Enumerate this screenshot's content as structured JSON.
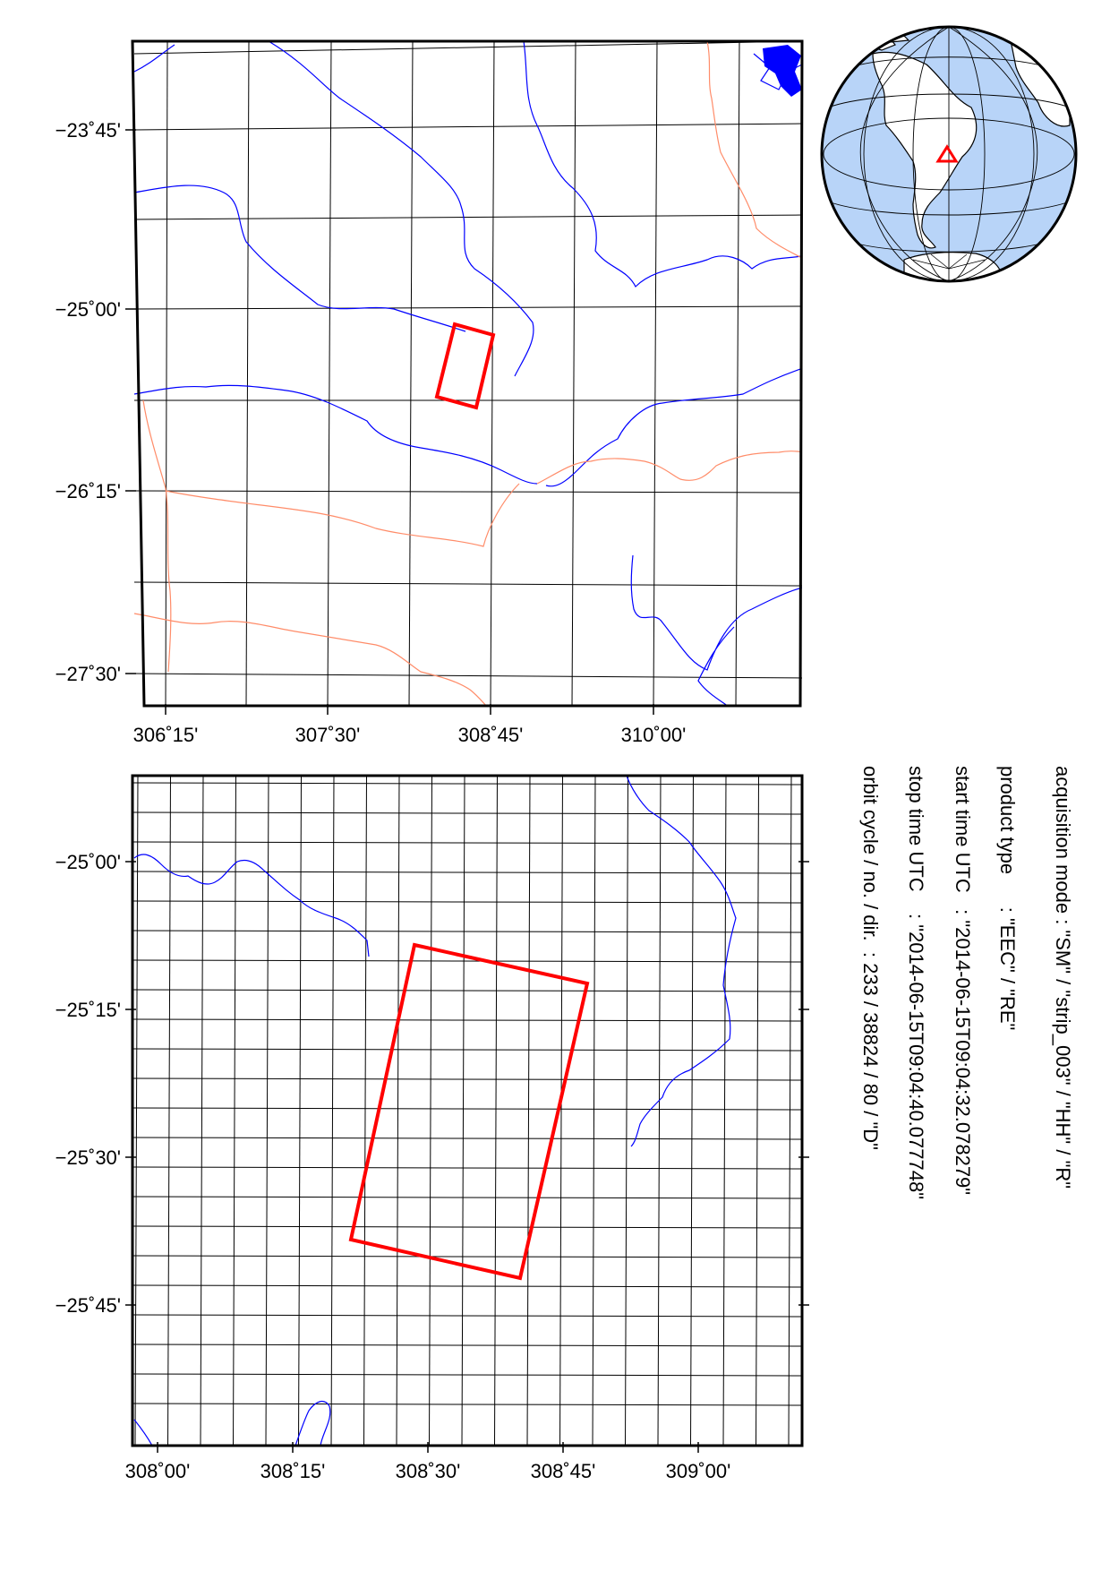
{
  "overview_map": {
    "lat_labels": [
      "−23˚45'",
      "−25˚00'",
      "−26˚15'",
      "−27˚30'"
    ],
    "lon_labels": [
      "306˚15'",
      "307˚30'",
      "308˚45'",
      "310˚00'"
    ],
    "river_color": "#0000ff",
    "border_color": "#ff8c69",
    "footprint_color": "#ff0000"
  },
  "detail_map": {
    "lat_labels": [
      "−25˚00'",
      "−25˚15'",
      "−25˚30'",
      "−25˚45'"
    ],
    "lon_labels": [
      "308˚00'",
      "308˚15'",
      "308˚30'",
      "308˚45'",
      "309˚00'"
    ],
    "footprint_color": "#ff0000"
  },
  "globe": {
    "ocean_color": "#b8d4f8",
    "marker_color": "#ff0000",
    "marker_icon": "triangle-marker-icon"
  },
  "info": {
    "line1": "acquisition mode : \"SM\" / \"strip_003\" / \"HH\" / \"R\"",
    "line2": "product type      : \"EEC\" / \"RE\"",
    "line3": "start time UTC   : \"2014-06-15T09:04:32.078279\"",
    "line4": "stop time UTC    : \"2014-06-15T09:04:40.077748\"",
    "line5": "orbit cycle / no. / dir.  : 233 / 38824 / 80 / \"D\""
  }
}
